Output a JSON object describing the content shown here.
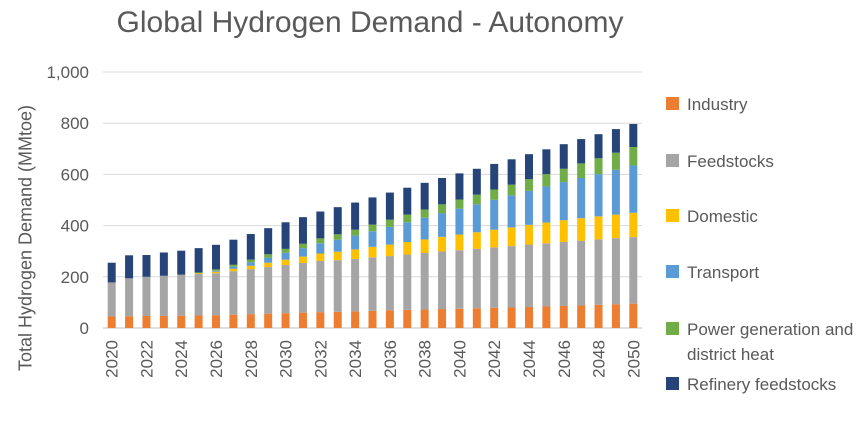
{
  "chart_data": {
    "type": "bar",
    "stacked": true,
    "title": "Global Hydrogen Demand - Autonomy",
    "ylabel": "Total Hydrogen Demand (MMtoe)",
    "xlabel": "",
    "ylim": [
      0,
      1000
    ],
    "yticks": [
      "0",
      "200",
      "400",
      "600",
      "800",
      "1,000"
    ],
    "grid": true,
    "legend_position": "right",
    "categories": [
      "2020",
      "2021",
      "2022",
      "2023",
      "2024",
      "2025",
      "2026",
      "2027",
      "2028",
      "2029",
      "2030",
      "2031",
      "2032",
      "2033",
      "2034",
      "2035",
      "2036",
      "2037",
      "2038",
      "2039",
      "2040",
      "2041",
      "2042",
      "2043",
      "2044",
      "2045",
      "2046",
      "2047",
      "2048",
      "2049",
      "2050"
    ],
    "xtick_labels": [
      "2020",
      "",
      "2022",
      "",
      "2024",
      "",
      "2026",
      "",
      "2028",
      "",
      "2030",
      "",
      "2032",
      "",
      "2034",
      "",
      "2036",
      "",
      "2038",
      "",
      "2040",
      "",
      "2042",
      "",
      "2044",
      "",
      "2046",
      "",
      "2048",
      "",
      "2050"
    ],
    "series": [
      {
        "name": "Industry",
        "color": "#ED7D31",
        "values": [
          45,
          46,
          47,
          47,
          48,
          49,
          50,
          52,
          54,
          56,
          58,
          60,
          62,
          63,
          65,
          67,
          69,
          71,
          72,
          74,
          75,
          77,
          79,
          80,
          82,
          84,
          86,
          88,
          91,
          93,
          95
        ]
      },
      {
        "name": "Feedstocks",
        "color": "#A5A5A5",
        "values": [
          133,
          148,
          153,
          157,
          159,
          162,
          164,
          170,
          176,
          182,
          188,
          194,
          200,
          202,
          205,
          209,
          212,
          216,
          221,
          225,
          229,
          232,
          236,
          240,
          244,
          247,
          250,
          253,
          255,
          258,
          260
        ]
      },
      {
        "name": "Domestic",
        "color": "#FFC000",
        "values": [
          0,
          0,
          0,
          0,
          1,
          3,
          6,
          9,
          13,
          17,
          21,
          25,
          29,
          33,
          37,
          41,
          45,
          49,
          53,
          57,
          61,
          65,
          69,
          73,
          77,
          81,
          85,
          88,
          90,
          92,
          95
        ]
      },
      {
        "name": "Transport",
        "color": "#5B9BD5",
        "values": [
          0,
          0,
          0,
          0,
          0,
          0,
          4,
          8,
          14,
          20,
          27,
          33,
          40,
          47,
          54,
          61,
          69,
          77,
          85,
          93,
          101,
          109,
          117,
          125,
          133,
          141,
          149,
          157,
          165,
          175,
          185
        ]
      },
      {
        "name": "Power generation and district heat",
        "color": "#70AD47",
        "values": [
          0,
          0,
          0,
          0,
          0,
          3,
          5,
          8,
          10,
          13,
          15,
          17,
          19,
          21,
          23,
          26,
          28,
          30,
          32,
          34,
          36,
          38,
          40,
          42,
          45,
          48,
          52,
          57,
          62,
          67,
          72
        ]
      },
      {
        "name": "Refinery feedstocks",
        "color": "#264478",
        "values": [
          77,
          90,
          85,
          91,
          94,
          95,
          96,
          98,
          100,
          102,
          104,
          104,
          105,
          106,
          106,
          106,
          106,
          105,
          104,
          103,
          102,
          101,
          100,
          99,
          98,
          97,
          96,
          95,
          94,
          92,
          90
        ]
      }
    ]
  },
  "legend": {
    "items": [
      {
        "label": "Industry",
        "color": "#ED7D31"
      },
      {
        "label": "Feedstocks",
        "color": "#A5A5A5"
      },
      {
        "label": "Domestic",
        "color": "#FFC000"
      },
      {
        "label": "Transport",
        "color": "#5B9BD5"
      },
      {
        "label": "Power generation and district heat",
        "color": "#70AD47"
      },
      {
        "label": "Refinery feedstocks",
        "color": "#264478"
      }
    ]
  }
}
